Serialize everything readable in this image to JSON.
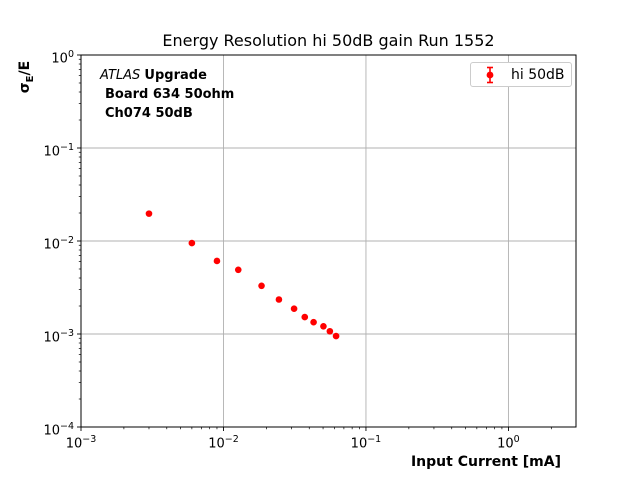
{
  "figure": {
    "title": "Energy Resolution hi 50dB gain Run 1552"
  },
  "annotation": {
    "experiment": "ATLAS",
    "program": "Upgrade",
    "line2": "Board 634 50ohm",
    "line3": "Ch074 50dB"
  },
  "legend": {
    "entries": [
      {
        "label": "hi 50dB",
        "color": "#ff0000"
      }
    ]
  },
  "axes": {
    "xlabel": "Input Current [mA]",
    "ylabel_parts": {
      "sigma": "σ",
      "sub": "E",
      "rest": "/E"
    },
    "x_tick_exponents": [
      -3,
      -2,
      -1,
      0
    ],
    "y_tick_exponents": [
      0,
      -1,
      -2,
      -3,
      -4
    ]
  },
  "colors": {
    "marker": "#ff0000",
    "grid": "#b0b0b0",
    "spine": "#000000"
  },
  "chart_data": {
    "type": "scatter",
    "title": "Energy Resolution hi 50dB gain Run 1552",
    "xlabel": "Input Current [mA]",
    "ylabel": "σ_E/E",
    "xscale": "log",
    "yscale": "log",
    "xlim": [
      0.001,
      2.98
    ],
    "ylim": [
      0.0001,
      1.0
    ],
    "grid": true,
    "legend_position": "upper right",
    "series": [
      {
        "name": "hi 50dB",
        "marker": "circle-with-errorbars",
        "color": "#ff0000",
        "x": [
          0.003,
          0.006,
          0.009,
          0.0127,
          0.0185,
          0.0245,
          0.0313,
          0.0372,
          0.0429,
          0.0503,
          0.0558,
          0.0617
        ],
        "y": [
          0.0197,
          0.0095,
          0.0061,
          0.0049,
          0.0033,
          0.00235,
          0.00187,
          0.00152,
          0.00134,
          0.00121,
          0.00107,
          0.00095
        ]
      }
    ]
  }
}
